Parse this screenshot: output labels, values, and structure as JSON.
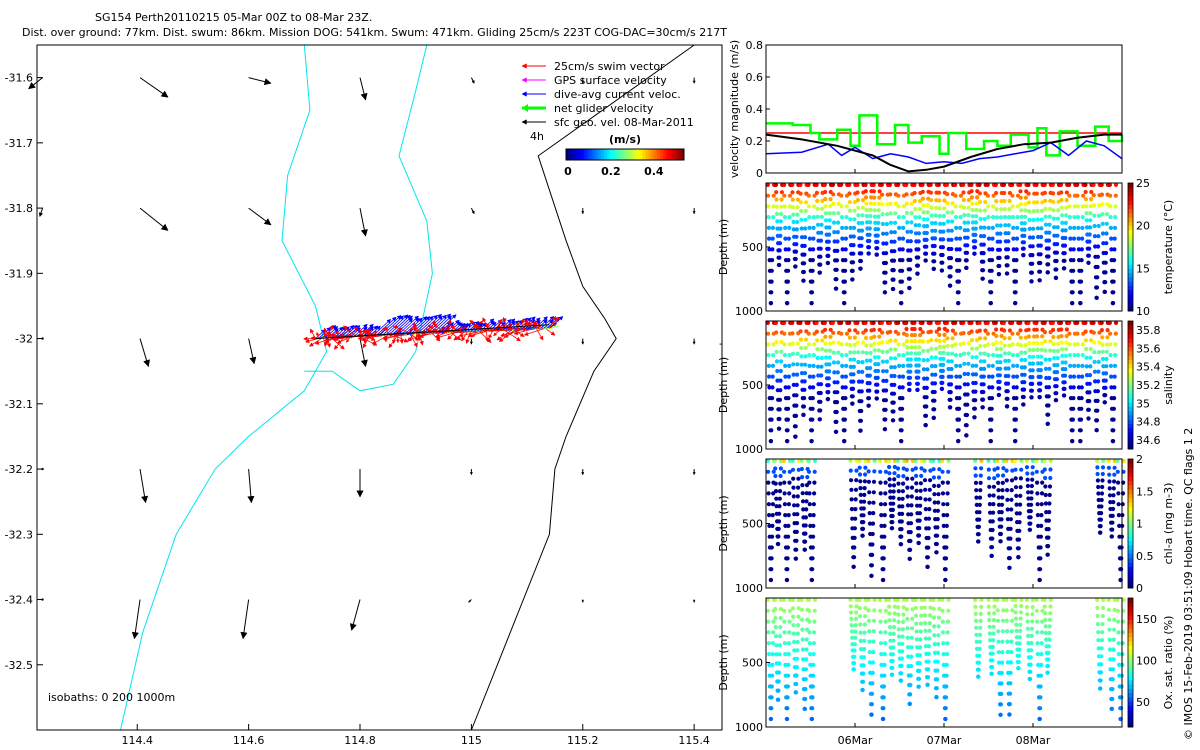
{
  "header": {
    "line1": "SG154 Perth20110215 05-Mar 00Z to 08-Mar 23Z.",
    "line2": "Dist. over ground: 77km. Dist. swum: 86km. Mission DOG: 541km. Swum: 471km. Gliding 25cm/s 223T COG-DAC=30cm/s 217T"
  },
  "side_note": "© IMOS 15-Feb-2019 03:51:09 Hobart time. QC flags 1  2",
  "dash_label": "-",
  "chart_data": [
    {
      "type": "vector-map",
      "xlim": [
        114.22,
        115.45
      ],
      "ylim": [
        -32.6,
        -31.55
      ],
      "xticks": [
        114.4,
        114.6,
        114.8,
        115,
        115.2,
        115.4
      ],
      "xtick_labels": [
        "114.4",
        "114.6",
        "114.8",
        "115",
        "115.2",
        "115.4"
      ],
      "yticks": [
        -31.6,
        -31.7,
        -31.8,
        -31.9,
        -32,
        -32.1,
        -32.2,
        -32.3,
        -32.4,
        -32.5
      ],
      "ytick_labels": [
        "-31.6",
        "-31.7",
        "-31.8",
        "-31.9",
        "-32",
        "-32.1",
        "-32.2",
        "-32.3",
        "-32.4",
        "-32.5"
      ],
      "legend": {
        "position": "top-right",
        "items": [
          {
            "label": "25cm/s swim vector",
            "color": "#ff0000"
          },
          {
            "label": "GPS surface velocity",
            "color": "#ff00ff"
          },
          {
            "label": "dive-avg current veloc.",
            "color": "#0000ff"
          },
          {
            "label": "net glider velocity",
            "color": "#00ff00"
          },
          {
            "label": "sfc geo. vel. 08-Mar-2011",
            "color": "#000000"
          }
        ]
      },
      "time_label": "4h",
      "colorbar": {
        "title": "(m/s)",
        "range": [
          0,
          0.55
        ],
        "ticks": [
          0,
          0.2,
          0.4
        ],
        "tick_labels": [
          "0",
          "0.2",
          "0.4"
        ]
      },
      "isobath_label": "isobaths: 0   200  1000m",
      "sfc_vectors": {
        "lons": [
          114.23,
          114.405,
          114.6,
          114.8,
          115.0,
          115.2,
          115.4
        ],
        "lats": [
          -31.6,
          -31.8,
          -32.0,
          -32.2,
          -32.4
        ],
        "u": [
          [
            -0.05,
            0.1,
            0.08,
            0.02,
            0.01,
            0.0,
            0.0
          ],
          [
            -0.01,
            0.1,
            0.08,
            0.02,
            0.01,
            0.0,
            0.0
          ],
          [
            0.0,
            0.03,
            0.02,
            0.02,
            0.0,
            0.0,
            0.0
          ],
          [
            0.0,
            0.02,
            0.01,
            0.0,
            0.0,
            0.0,
            0.0
          ],
          [
            0.0,
            -0.02,
            -0.02,
            -0.03,
            -0.01,
            0.0,
            0.0
          ]
        ],
        "v": [
          [
            -0.04,
            -0.07,
            -0.02,
            -0.08,
            -0.02,
            -0.02,
            -0.02
          ],
          [
            -0.03,
            -0.08,
            -0.06,
            -0.1,
            -0.02,
            -0.02,
            -0.02
          ],
          [
            0.0,
            -0.1,
            -0.09,
            -0.1,
            -0.02,
            -0.02,
            -0.02
          ],
          [
            0.0,
            -0.12,
            -0.12,
            -0.1,
            -0.02,
            -0.02,
            -0.02
          ],
          [
            0.0,
            -0.14,
            -0.14,
            -0.11,
            -0.01,
            -0.01,
            -0.01
          ]
        ]
      },
      "track": {
        "lon_start": 114.72,
        "lon_end": 115.14,
        "lat_start": -32.0,
        "lat_end": -31.985,
        "count": 75
      },
      "coastline": [
        [
          115.4,
          -31.55
        ],
        [
          115.12,
          -31.72
        ],
        [
          115.17,
          -31.85
        ],
        [
          115.2,
          -31.92
        ],
        [
          115.24,
          -31.97
        ],
        [
          115.26,
          -32.0
        ],
        [
          115.22,
          -32.05
        ],
        [
          115.17,
          -32.15
        ],
        [
          115.15,
          -32.2
        ],
        [
          115.14,
          -32.3
        ],
        [
          115.07,
          -32.45
        ],
        [
          115.0,
          -32.6
        ]
      ],
      "isobath_200": [
        [
          114.92,
          -31.55
        ],
        [
          114.9,
          -31.62
        ],
        [
          114.87,
          -31.72
        ],
        [
          114.92,
          -31.82
        ],
        [
          114.93,
          -31.9
        ],
        [
          114.9,
          -32.02
        ],
        [
          114.86,
          -32.07
        ],
        [
          114.8,
          -32.08
        ],
        [
          114.75,
          -32.05
        ],
        [
          114.7,
          -32.05
        ]
      ],
      "isobath_1000": [
        [
          114.7,
          -31.55
        ],
        [
          114.71,
          -31.65
        ],
        [
          114.67,
          -31.75
        ],
        [
          114.66,
          -31.85
        ],
        [
          114.72,
          -31.95
        ],
        [
          114.74,
          -32.02
        ],
        [
          114.7,
          -32.08
        ],
        [
          114.6,
          -32.15
        ],
        [
          114.54,
          -32.2
        ],
        [
          114.47,
          -32.3
        ],
        [
          114.41,
          -32.45
        ],
        [
          114.37,
          -32.6
        ]
      ]
    },
    {
      "type": "line",
      "ylabel": "velocity magnitude (m/s)",
      "ylim": [
        0,
        0.8
      ],
      "yticks": [
        0,
        0.2,
        0.4,
        0.6,
        0.8
      ],
      "ytick_labels": [
        "0",
        "0.2",
        "0.4",
        "0.6",
        "0.8"
      ],
      "xlim": [
        0,
        4
      ],
      "series": [
        {
          "name": "swim (25cm/s)",
          "color": "#ff0000",
          "x": [
            0,
            4
          ],
          "y": [
            0.25,
            0.25
          ]
        },
        {
          "name": "net glider velocity",
          "color": "#00ff00",
          "x": [
            0,
            0.3,
            0.5,
            0.6,
            0.8,
            0.95,
            1.05,
            1.25,
            1.45,
            1.6,
            1.75,
            1.95,
            2.05,
            2.25,
            2.45,
            2.6,
            2.75,
            2.95,
            3.05,
            3.15,
            3.3,
            3.5,
            3.7,
            3.85,
            4.0
          ],
          "y": [
            0.31,
            0.3,
            0.25,
            0.21,
            0.27,
            0.17,
            0.36,
            0.18,
            0.3,
            0.19,
            0.23,
            0.12,
            0.25,
            0.15,
            0.2,
            0.17,
            0.24,
            0.16,
            0.28,
            0.11,
            0.26,
            0.17,
            0.29,
            0.2,
            0.24
          ]
        },
        {
          "name": "dive-avg current",
          "color": "#0000ff",
          "x": [
            0,
            0.4,
            0.7,
            0.85,
            1.0,
            1.2,
            1.4,
            1.6,
            1.8,
            2.0,
            2.2,
            2.4,
            2.6,
            2.8,
            3.0,
            3.2,
            3.4,
            3.6,
            3.8,
            4.0
          ],
          "y": [
            0.12,
            0.13,
            0.18,
            0.11,
            0.16,
            0.09,
            0.12,
            0.1,
            0.06,
            0.07,
            0.06,
            0.09,
            0.1,
            0.12,
            0.14,
            0.19,
            0.11,
            0.2,
            0.17,
            0.09
          ]
        },
        {
          "name": "sfc geo. vel.",
          "color": "#000000",
          "x": [
            0,
            0.4,
            0.8,
            1.2,
            1.4,
            1.6,
            1.8,
            2.0,
            2.3,
            2.6,
            2.9,
            3.2,
            3.5,
            3.8,
            4.0
          ],
          "y": [
            0.24,
            0.21,
            0.17,
            0.11,
            0.05,
            0.01,
            0.02,
            0.04,
            0.1,
            0.15,
            0.18,
            0.19,
            0.22,
            0.24,
            0.24
          ]
        }
      ]
    },
    {
      "type": "scatter-section",
      "ylabel": "Depth (m)",
      "ylim": [
        1000,
        0
      ],
      "yticks": [
        500,
        1000
      ],
      "ytick_labels": [
        "500",
        "1000"
      ],
      "cbar_label": "temperature (°C)",
      "cbar_range": [
        10,
        25
      ],
      "cbar_ticks": [
        10,
        15,
        20,
        25
      ],
      "cbar_tick_labels": [
        "10",
        "15",
        "20",
        "25"
      ],
      "pattern": "dense"
    },
    {
      "type": "scatter-section",
      "ylabel": "Depth (m)",
      "ylim": [
        1000,
        0
      ],
      "yticks": [
        500,
        1000
      ],
      "ytick_labels": [
        "500",
        "1000"
      ],
      "cbar_label": "salinity",
      "cbar_range": [
        34.5,
        35.9
      ],
      "cbar_ticks": [
        34.6,
        34.8,
        35,
        35.2,
        35.4,
        35.6,
        35.8
      ],
      "cbar_tick_labels": [
        "34.6",
        "34.8",
        "35",
        "35.2",
        "35.4",
        "35.6",
        "35.8"
      ],
      "pattern": "dense"
    },
    {
      "type": "scatter-section",
      "ylabel": "Depth (m)",
      "ylim": [
        1000,
        0
      ],
      "yticks": [
        500,
        1000
      ],
      "ytick_labels": [
        "500",
        "1000"
      ],
      "cbar_label": "chl-a (mg m-3)",
      "cbar_range": [
        0,
        2
      ],
      "cbar_ticks": [
        0,
        0.5,
        1,
        1.5,
        2
      ],
      "cbar_tick_labels": [
        "0",
        "0.5",
        "1",
        "1.5",
        "2"
      ],
      "pattern": "sparse"
    },
    {
      "type": "scatter-section",
      "ylabel": "Depth (m)",
      "ylim": [
        1000,
        0
      ],
      "yticks": [
        500,
        1000
      ],
      "ytick_labels": [
        "500",
        "1000"
      ],
      "cbar_label": "Ox. sat. ratio (%)",
      "cbar_range": [
        20,
        175
      ],
      "cbar_ticks": [
        50,
        100,
        150
      ],
      "cbar_tick_labels": [
        "50",
        "100",
        "150"
      ],
      "pattern": "sparse"
    }
  ],
  "time_axis": {
    "ticks": [
      1,
      2,
      3
    ],
    "labels": [
      "06Mar",
      "07Mar",
      "08Mar"
    ]
  }
}
